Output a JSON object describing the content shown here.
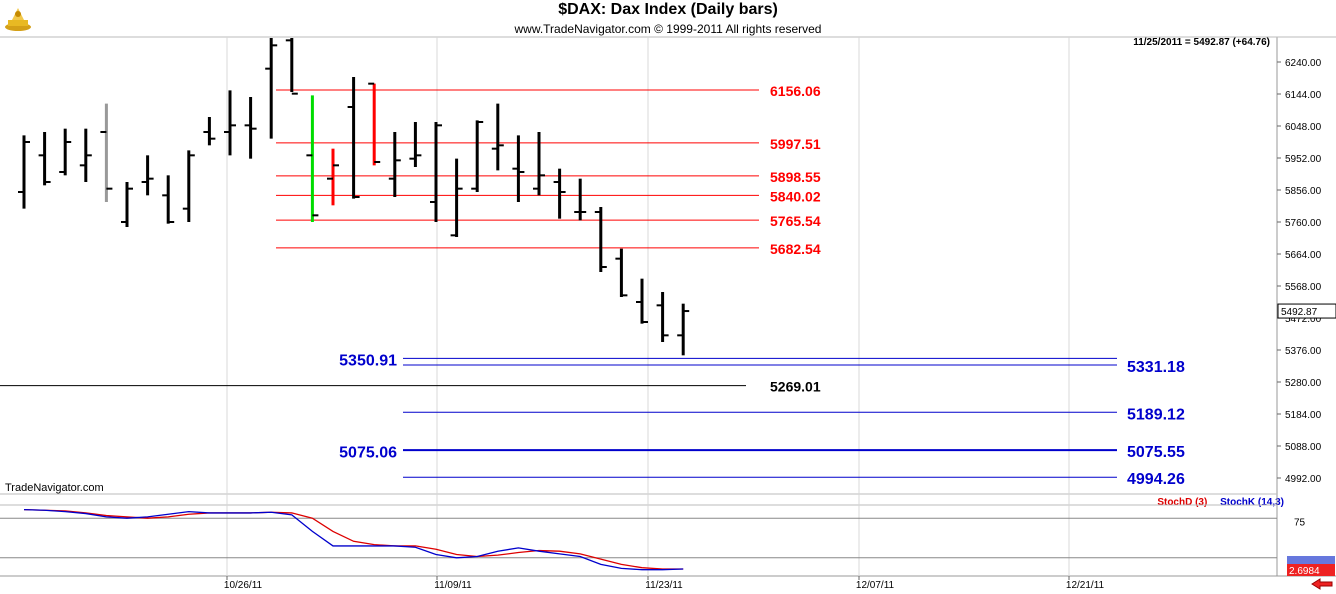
{
  "header": {
    "title": "$DAX:  Dax Index  (Daily bars)",
    "subtitle": "www.TradeNavigator.com © 1999-2011 All rights reserved",
    "readout": "11/25/2011 = 5492.87 (+64.76)",
    "brand": "TradeNavigator.com"
  },
  "colors": {
    "up_bar": "#00dd00",
    "down_bar": "#ff0000",
    "neutral_bar": "#000000",
    "gray_bar": "#999999",
    "resistance": "#ff0000",
    "support": "#0000cc",
    "stoch_d": "#dd0000",
    "stoch_k": "#0000cc"
  },
  "chart_data": [
    {
      "type": "bar",
      "name": "price",
      "x_tick_labels": [
        "10/26/11",
        "11/09/11",
        "11/23/11",
        "12/07/11",
        "12/21/11"
      ],
      "y_tick_labels": [
        "6240.00",
        "6144.00",
        "6048.00",
        "5952.00",
        "5856.00",
        "5760.00",
        "5664.00",
        "5568.00",
        "5472.00",
        "5376.00",
        "5280.00",
        "5184.00",
        "5088.00",
        "4992.00"
      ],
      "ylim": [
        4960,
        6315
      ],
      "last_value_label": "5492.87",
      "bars": [
        {
          "i": 0,
          "o": 5850,
          "h": 6020,
          "l": 5800,
          "c": 6000,
          "t": "n"
        },
        {
          "i": 1,
          "o": 5960,
          "h": 6030,
          "l": 5870,
          "c": 5880,
          "t": "n"
        },
        {
          "i": 2,
          "o": 5910,
          "h": 6040,
          "l": 5900,
          "c": 6000,
          "t": "n"
        },
        {
          "i": 3,
          "o": 5930,
          "h": 6040,
          "l": 5880,
          "c": 5960,
          "t": "n"
        },
        {
          "i": 4,
          "o": 6030,
          "h": 6115,
          "l": 5820,
          "c": 5860,
          "t": "g"
        },
        {
          "i": 5,
          "o": 5760,
          "h": 5880,
          "l": 5745,
          "c": 5860,
          "t": "n"
        },
        {
          "i": 6,
          "o": 5880,
          "h": 5960,
          "l": 5840,
          "c": 5890,
          "t": "n"
        },
        {
          "i": 7,
          "o": 5840,
          "h": 5900,
          "l": 5755,
          "c": 5760,
          "t": "n"
        },
        {
          "i": 8,
          "o": 5800,
          "h": 5975,
          "l": 5760,
          "c": 5960,
          "t": "n"
        },
        {
          "i": 9,
          "o": 6030,
          "h": 6075,
          "l": 5990,
          "c": 6010,
          "t": "n"
        },
        {
          "i": 10,
          "o": 6030,
          "h": 6155,
          "l": 5960,
          "c": 6050,
          "t": "n"
        },
        {
          "i": 11,
          "o": 6050,
          "h": 6135,
          "l": 5950,
          "c": 6040,
          "t": "n"
        },
        {
          "i": 12,
          "o": 6220,
          "h": 6315,
          "l": 6010,
          "c": 6290,
          "t": "n"
        },
        {
          "i": 13,
          "o": 6305,
          "h": 6315,
          "l": 6150,
          "c": 6145,
          "t": "n"
        },
        {
          "i": 14,
          "o": 5960,
          "h": 6140,
          "l": 5760,
          "c": 5780,
          "t": "g"
        },
        {
          "i": 15,
          "o": 5890,
          "h": 5980,
          "l": 5810,
          "c": 5930,
          "t": "r"
        },
        {
          "i": 16,
          "o": 6105,
          "h": 6195,
          "l": 5830,
          "c": 5835,
          "t": "n"
        },
        {
          "i": 17,
          "o": 6175,
          "h": 6175,
          "l": 5930,
          "c": 5940,
          "t": "r"
        },
        {
          "i": 18,
          "o": 5890,
          "h": 6030,
          "l": 5835,
          "c": 5945,
          "t": "n"
        },
        {
          "i": 19,
          "o": 5950,
          "h": 6060,
          "l": 5925,
          "c": 5960,
          "t": "n"
        },
        {
          "i": 20,
          "o": 5820,
          "h": 6060,
          "l": 5760,
          "c": 6050,
          "t": "n"
        },
        {
          "i": 21,
          "o": 5720,
          "h": 5950,
          "l": 5715,
          "c": 5860,
          "t": "n"
        },
        {
          "i": 22,
          "o": 5860,
          "h": 6065,
          "l": 5850,
          "c": 6060,
          "t": "n"
        },
        {
          "i": 23,
          "o": 5980,
          "h": 6115,
          "l": 5915,
          "c": 5990,
          "t": "n"
        },
        {
          "i": 24,
          "o": 5920,
          "h": 6020,
          "l": 5820,
          "c": 5910,
          "t": "n"
        },
        {
          "i": 25,
          "o": 5860,
          "h": 6030,
          "l": 5840,
          "c": 5900,
          "t": "n"
        },
        {
          "i": 26,
          "o": 5880,
          "h": 5920,
          "l": 5770,
          "c": 5850,
          "t": "n"
        },
        {
          "i": 27,
          "o": 5790,
          "h": 5890,
          "l": 5765,
          "c": 5790,
          "t": "n"
        },
        {
          "i": 28,
          "o": 5790,
          "h": 5805,
          "l": 5610,
          "c": 5625,
          "t": "n"
        },
        {
          "i": 29,
          "o": 5650,
          "h": 5680,
          "l": 5535,
          "c": 5540,
          "t": "n"
        },
        {
          "i": 30,
          "o": 5520,
          "h": 5590,
          "l": 5455,
          "c": 5460,
          "t": "n"
        },
        {
          "i": 31,
          "o": 5510,
          "h": 5550,
          "l": 5400,
          "c": 5420,
          "t": "n"
        },
        {
          "i": 32,
          "o": 5420,
          "h": 5515,
          "l": 5360,
          "c": 5492.87,
          "t": "n"
        }
      ],
      "levels": [
        {
          "value": 6156.06,
          "label": "6156.06",
          "side": "right",
          "kind": "resistance",
          "span": "short"
        },
        {
          "value": 5997.51,
          "label": "5997.51",
          "side": "right",
          "kind": "resistance",
          "span": "short"
        },
        {
          "value": 5898.55,
          "label": "5898.55",
          "side": "right",
          "kind": "resistance",
          "span": "short"
        },
        {
          "value": 5840.02,
          "label": "5840.02",
          "side": "right",
          "kind": "resistance",
          "span": "short"
        },
        {
          "value": 5765.54,
          "label": "5765.54",
          "side": "right",
          "kind": "resistance",
          "span": "short"
        },
        {
          "value": 5682.54,
          "label": "5682.54",
          "side": "right",
          "kind": "resistance",
          "span": "short"
        },
        {
          "value": 5350.91,
          "label": "5350.91",
          "side": "left",
          "kind": "support",
          "span": "long"
        },
        {
          "value": 5331.18,
          "label": "5331.18",
          "side": "right",
          "kind": "support",
          "span": "long"
        },
        {
          "value": 5269.01,
          "label": "5269.01",
          "side": "right",
          "kind": "neutral",
          "span": "full"
        },
        {
          "value": 5189.12,
          "label": "5189.12",
          "side": "right",
          "kind": "support",
          "span": "long"
        },
        {
          "value": 5075.55,
          "label": "5075.55",
          "side": "right",
          "kind": "support",
          "span": "long",
          "thick": true
        },
        {
          "value": 5075.06,
          "label": "5075.06",
          "side": "left",
          "kind": "support",
          "span": "none"
        },
        {
          "value": 4994.26,
          "label": "4994.26",
          "side": "right",
          "kind": "support",
          "span": "long"
        }
      ]
    },
    {
      "type": "line",
      "name": "stochastic",
      "ylim": [
        0,
        100
      ],
      "y_tick_labels": [
        "75"
      ],
      "reference_lines": [
        80,
        20
      ],
      "last_value_label": "2.6984",
      "series": [
        {
          "name": "StochD (3)",
          "values": [
            93,
            92,
            91,
            88,
            84,
            82,
            80,
            82,
            86,
            88,
            88,
            88,
            89,
            88,
            80,
            60,
            45,
            40,
            38,
            38,
            33,
            25,
            22,
            24,
            28,
            31,
            30,
            26,
            18,
            10,
            5,
            3,
            3
          ]
        },
        {
          "name": "StochK (14,3)",
          "values": [
            93,
            92,
            90,
            87,
            82,
            80,
            82,
            86,
            90,
            88,
            88,
            88,
            89,
            85,
            60,
            38,
            38,
            38,
            38,
            36,
            25,
            20,
            22,
            30,
            35,
            30,
            26,
            22,
            10,
            4,
            2,
            2,
            3
          ]
        }
      ]
    }
  ]
}
